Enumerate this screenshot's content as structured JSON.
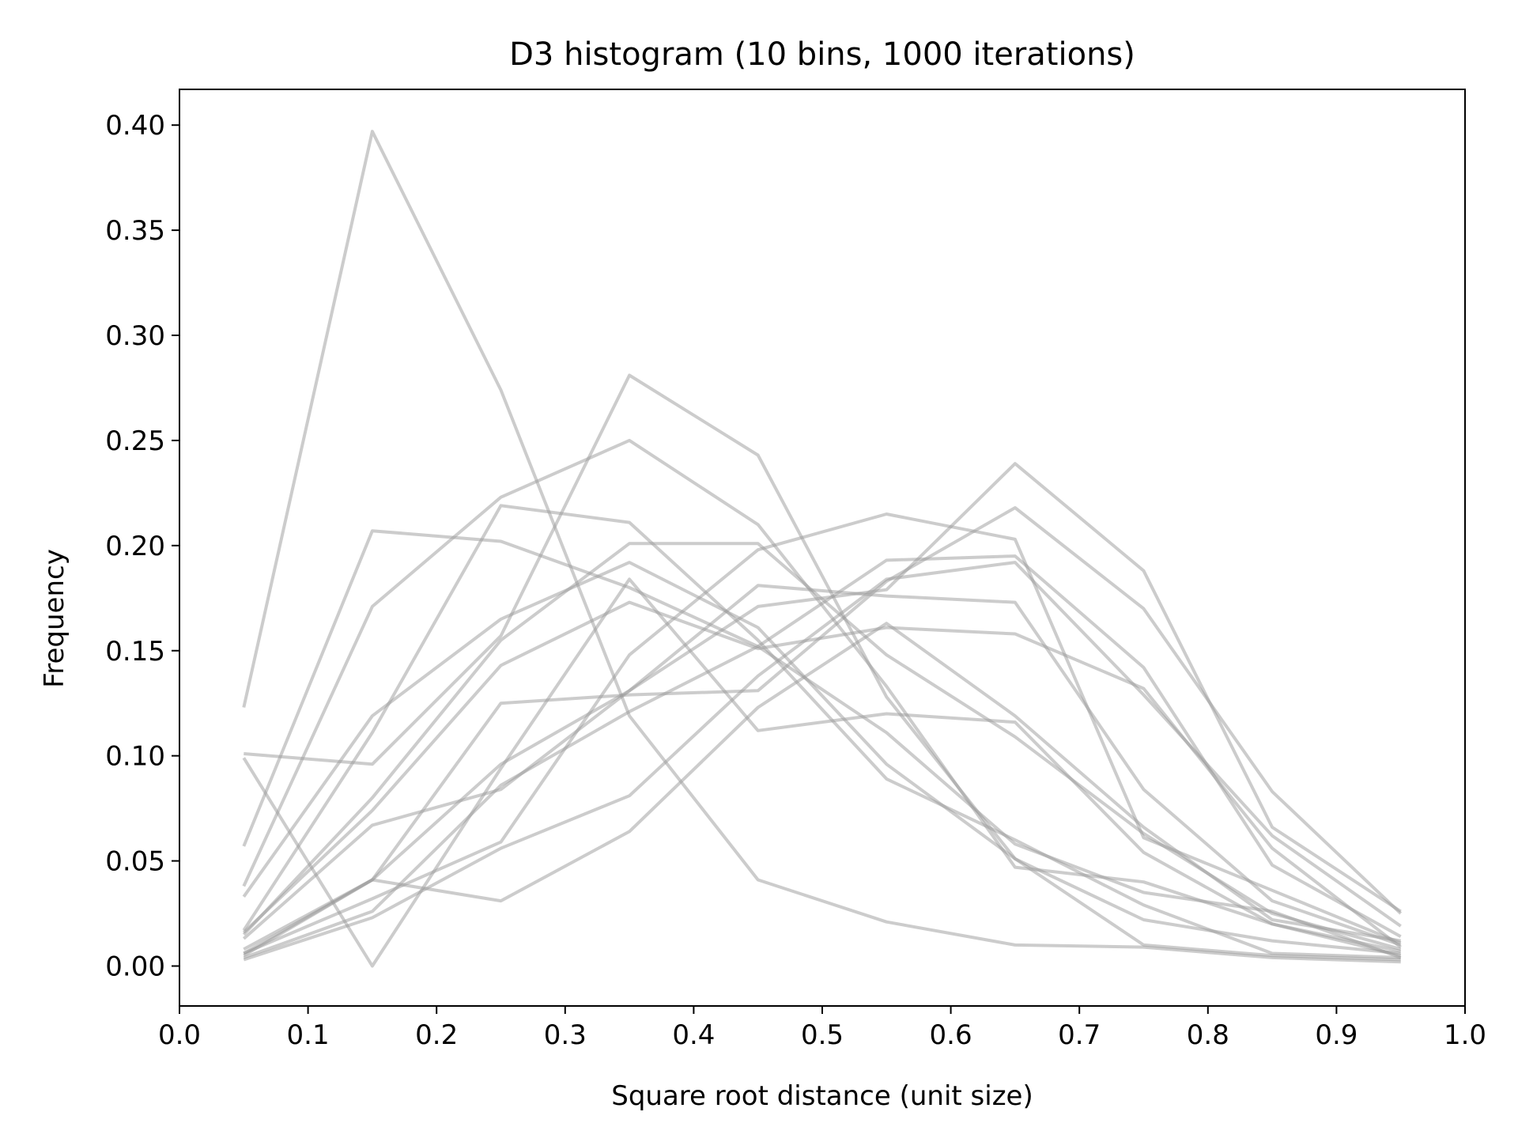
{
  "chart_data": {
    "type": "line",
    "title": "D3 histogram (10 bins, 1000 iterations)",
    "xlabel": "Square root distance (unit size)",
    "ylabel": "Frequency",
    "xlim": [
      0.0,
      1.0
    ],
    "ylim": [
      -0.019,
      0.417
    ],
    "xticks": [
      "0.0",
      "0.1",
      "0.2",
      "0.3",
      "0.4",
      "0.5",
      "0.6",
      "0.7",
      "0.8",
      "0.9",
      "1.0"
    ],
    "yticks": [
      "0.00",
      "0.05",
      "0.10",
      "0.15",
      "0.20",
      "0.25",
      "0.30",
      "0.35",
      "0.40"
    ],
    "grid": false,
    "line_color": "#999999",
    "x": [
      0.05,
      0.15,
      0.25,
      0.35,
      0.45,
      0.55,
      0.65,
      0.75,
      0.85,
      0.95
    ],
    "series": [
      {
        "values": [
          0.123,
          0.397,
          0.274,
          0.119,
          0.041,
          0.021,
          0.01,
          0.009,
          0.004,
          0.002
        ]
      },
      {
        "values": [
          0.101,
          0.096,
          0.157,
          0.281,
          0.243,
          0.128,
          0.051,
          0.01,
          0.005,
          0.003
        ]
      },
      {
        "values": [
          0.057,
          0.207,
          0.202,
          0.18,
          0.152,
          0.111,
          0.058,
          0.035,
          0.026,
          0.004
        ]
      },
      {
        "values": [
          0.038,
          0.171,
          0.223,
          0.25,
          0.21,
          0.133,
          0.047,
          0.04,
          0.02,
          0.005
        ]
      },
      {
        "values": [
          0.033,
          0.119,
          0.165,
          0.192,
          0.161,
          0.096,
          0.051,
          0.022,
          0.012,
          0.006
        ]
      },
      {
        "values": [
          0.099,
          0.0,
          0.094,
          0.184,
          0.112,
          0.12,
          0.116,
          0.054,
          0.02,
          0.007
        ]
      },
      {
        "values": [
          0.017,
          0.111,
          0.219,
          0.211,
          0.155,
          0.089,
          0.06,
          0.029,
          0.006,
          0.004
        ]
      },
      {
        "values": [
          0.015,
          0.08,
          0.155,
          0.201,
          0.201,
          0.148,
          0.109,
          0.063,
          0.025,
          0.008
        ]
      },
      {
        "values": [
          0.016,
          0.074,
          0.143,
          0.173,
          0.151,
          0.161,
          0.158,
          0.132,
          0.056,
          0.009
        ]
      },
      {
        "values": [
          0.013,
          0.067,
          0.084,
          0.131,
          0.171,
          0.179,
          0.239,
          0.188,
          0.066,
          0.026
        ]
      },
      {
        "values": [
          0.008,
          0.041,
          0.125,
          0.129,
          0.131,
          0.183,
          0.218,
          0.17,
          0.083,
          0.025
        ]
      },
      {
        "values": [
          0.006,
          0.032,
          0.059,
          0.148,
          0.198,
          0.215,
          0.203,
          0.061,
          0.036,
          0.011
        ]
      },
      {
        "values": [
          0.005,
          0.041,
          0.096,
          0.131,
          0.181,
          0.176,
          0.173,
          0.084,
          0.031,
          0.01
        ]
      },
      {
        "values": [
          0.004,
          0.026,
          0.086,
          0.121,
          0.152,
          0.193,
          0.195,
          0.142,
          0.048,
          0.014
        ]
      },
      {
        "values": [
          0.003,
          0.023,
          0.056,
          0.081,
          0.138,
          0.184,
          0.192,
          0.129,
          0.062,
          0.019
        ]
      },
      {
        "values": [
          0.006,
          0.041,
          0.031,
          0.064,
          0.123,
          0.163,
          0.119,
          0.066,
          0.022,
          0.012
        ]
      }
    ]
  }
}
